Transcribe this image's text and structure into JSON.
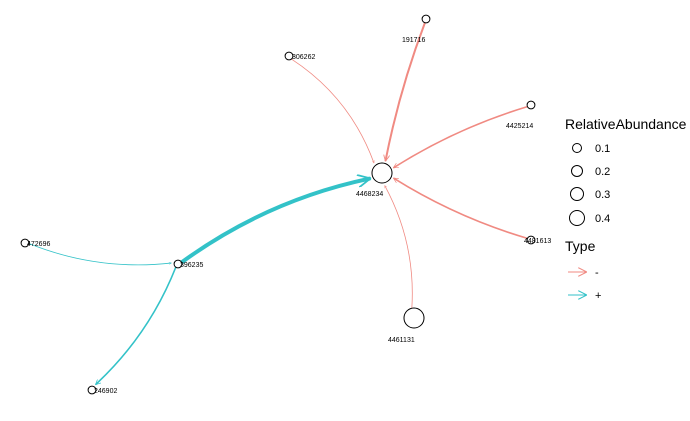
{
  "colors": {
    "negative": "#f08a82",
    "positive": "#33c2c8",
    "node_stroke": "#000000"
  },
  "nodes": [
    {
      "id": "4468234",
      "label": "4468234",
      "abundance": 0.3
    },
    {
      "id": "191716",
      "label": "191716",
      "abundance": 0.02
    },
    {
      "id": "306262",
      "label": "306262",
      "abundance": 0.02
    },
    {
      "id": "4425214",
      "label": "4425214",
      "abundance": 0.02
    },
    {
      "id": "4481613",
      "label": "4481613",
      "abundance": 0.02
    },
    {
      "id": "4461131",
      "label": "4461131",
      "abundance": 0.3
    },
    {
      "id": "396235",
      "label": "396235",
      "abundance": 0.02
    },
    {
      "id": "472696",
      "label": "472696",
      "abundance": 0.02
    },
    {
      "id": "246902",
      "label": "246902",
      "abundance": 0.02
    }
  ],
  "edges": [
    {
      "from": "191716",
      "to": "4468234",
      "type": "-",
      "weight": 2.0
    },
    {
      "from": "306262",
      "to": "4468234",
      "type": "-",
      "weight": 0.8
    },
    {
      "from": "4425214",
      "to": "4468234",
      "type": "-",
      "weight": 1.6
    },
    {
      "from": "4481613",
      "to": "4468234",
      "type": "-",
      "weight": 1.6
    },
    {
      "from": "4461131",
      "to": "4468234",
      "type": "-",
      "weight": 0.8
    },
    {
      "from": "396235",
      "to": "4468234",
      "type": "+",
      "weight": 4.0
    },
    {
      "from": "472696",
      "to": "396235",
      "type": "+",
      "weight": 0.8
    },
    {
      "from": "396235",
      "to": "246902",
      "type": "+",
      "weight": 1.6
    }
  ],
  "legend": {
    "size_title": "RelativeAbundance",
    "size_items": [
      {
        "label": "0.1",
        "value": 0.1
      },
      {
        "label": "0.2",
        "value": 0.2
      },
      {
        "label": "0.3",
        "value": 0.3
      },
      {
        "label": "0.4",
        "value": 0.4
      }
    ],
    "type_title": "Type",
    "type_items": [
      {
        "label": "-",
        "type": "-"
      },
      {
        "label": "+",
        "type": "+"
      }
    ]
  }
}
